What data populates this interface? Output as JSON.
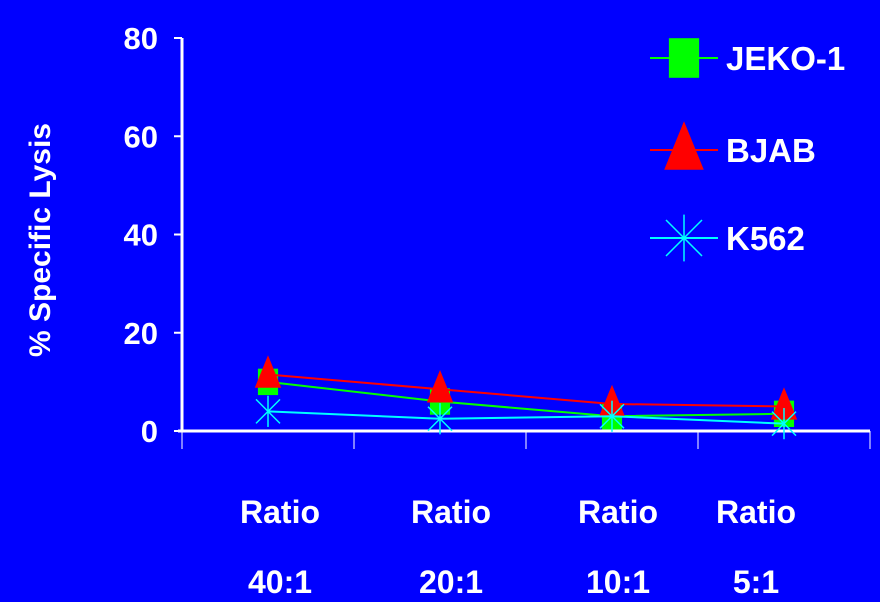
{
  "chart_data": {
    "type": "line",
    "title": "",
    "ylabel": "% Specific Lysis",
    "xlabel": "",
    "ylim": [
      0,
      80
    ],
    "yticks": [
      0,
      20,
      40,
      60,
      80
    ],
    "categories": [
      [
        "Ratio",
        "40:1"
      ],
      [
        "Ratio",
        "20:1"
      ],
      [
        "Ratio",
        "10:1"
      ],
      [
        "Ratio",
        "5:1"
      ]
    ],
    "legend_position": "top-right",
    "grid": false,
    "series": [
      {
        "name": "JEKO-1",
        "values": [
          10,
          6,
          3,
          3.5
        ],
        "color": "#00FF00",
        "marker": "square"
      },
      {
        "name": "BJAB",
        "values": [
          11.5,
          8.5,
          5.5,
          5
        ],
        "color": "#FF0000",
        "marker": "triangle"
      },
      {
        "name": "K562",
        "values": [
          4,
          2.5,
          3,
          1.5
        ],
        "color": "#00FFFF",
        "marker": "x"
      }
    ],
    "colors": {
      "background": "#0000FF",
      "axis": "#FFFFFF",
      "text": "#FFFFFF"
    }
  }
}
